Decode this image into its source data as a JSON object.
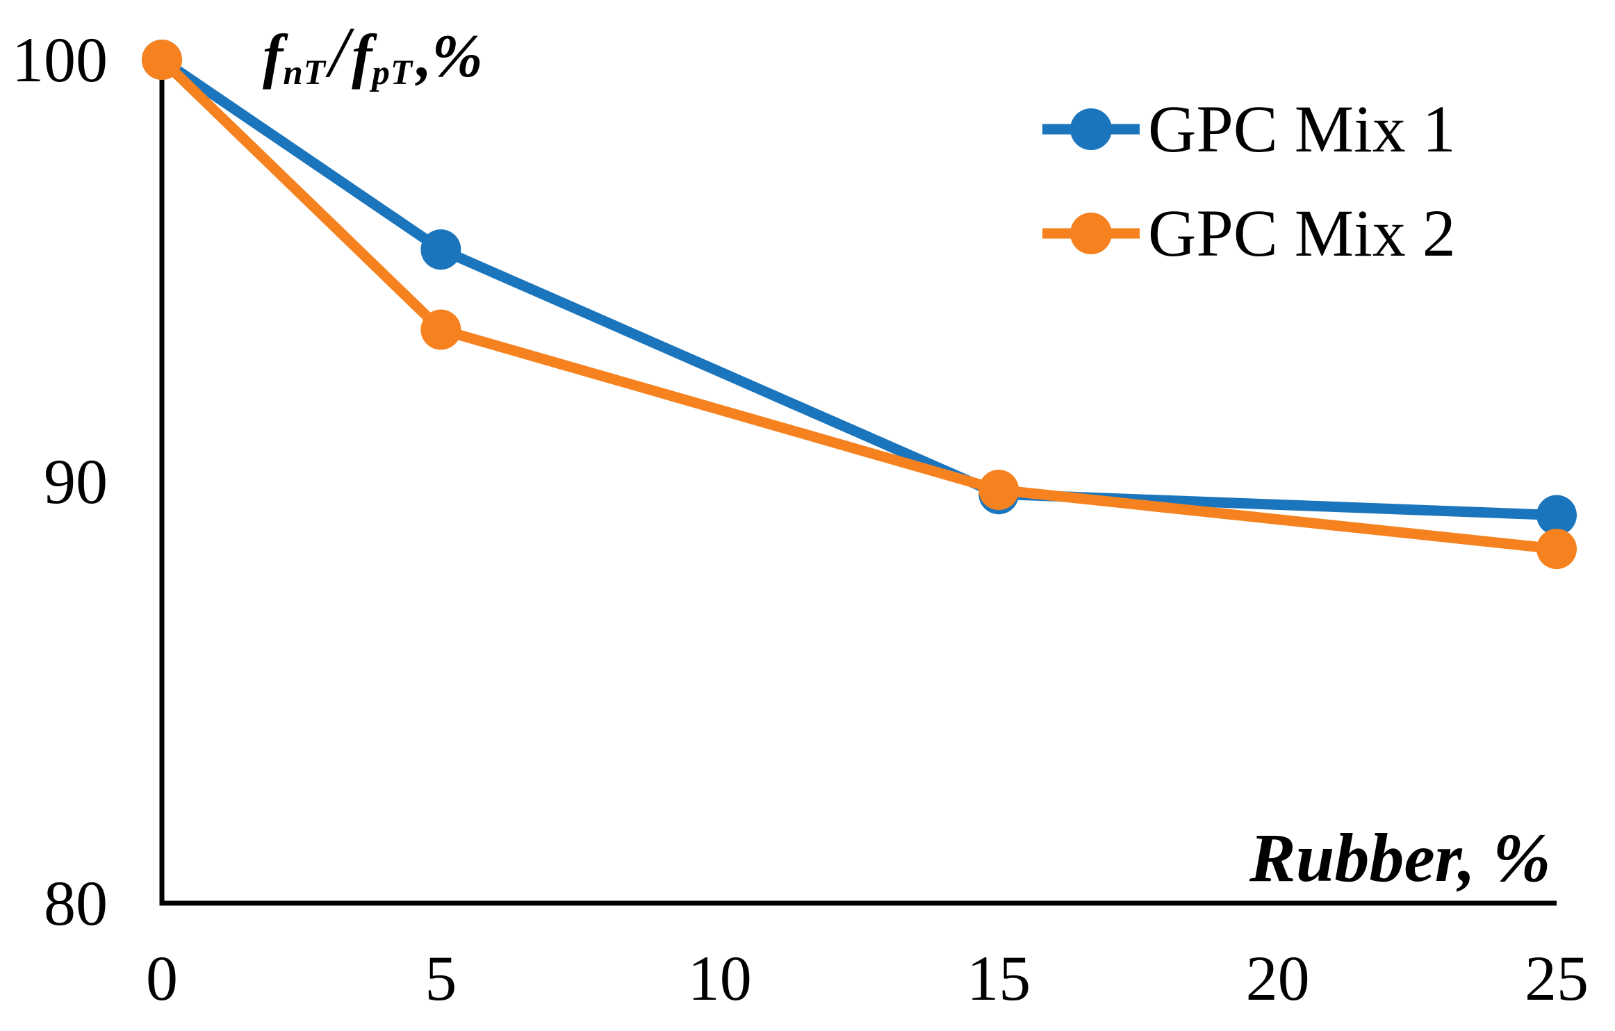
{
  "chart_data": {
    "type": "line",
    "ylabel_parts": {
      "f1": "f",
      "sub1": "nT",
      "slash": "/",
      "f2": "f",
      "sub2": "pT",
      "suffix": ",%"
    },
    "xlabel": "Rubber, %",
    "x": [
      0,
      5,
      15,
      25
    ],
    "series": [
      {
        "name": "GPC Mix 1",
        "color": "#1b75bc",
        "values": [
          100,
          95.5,
          89.7,
          89.2
        ]
      },
      {
        "name": "GPC Mix 2",
        "color": "#f6821f",
        "values": [
          100,
          93.6,
          89.8,
          88.4
        ]
      }
    ],
    "x_ticks": [
      0,
      5,
      10,
      15,
      20,
      25
    ],
    "y_ticks": [
      80,
      90,
      100
    ],
    "xlim": [
      0,
      25
    ],
    "ylim": [
      80,
      100
    ],
    "grid": false,
    "legend_position": "top-right",
    "axis_color": "#000000",
    "background_color": "#ffffff",
    "marker": "circle"
  }
}
